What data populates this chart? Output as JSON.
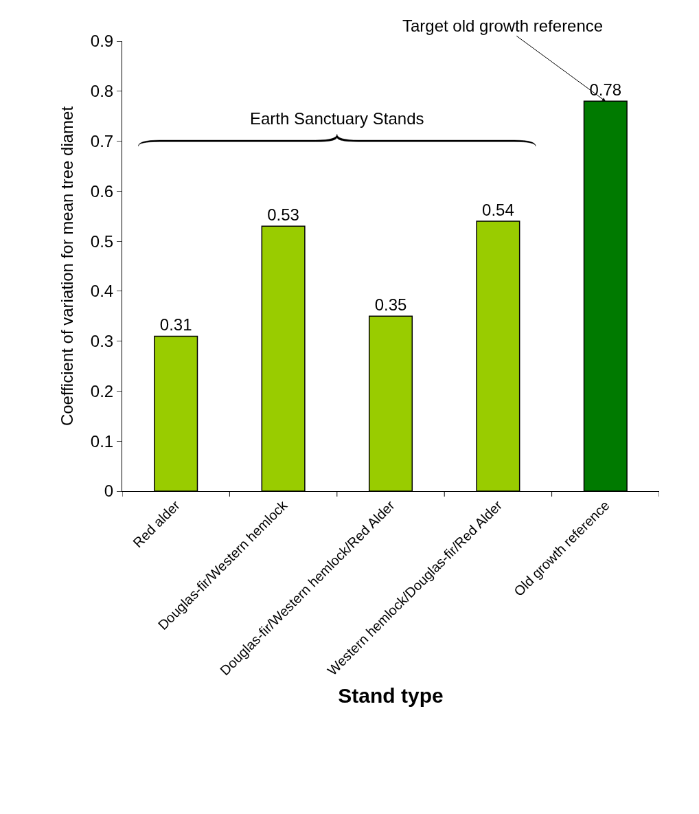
{
  "chart_data": {
    "type": "bar",
    "xlabel": "Stand type",
    "ylabel": "Coefficient of variation for mean tree diamet",
    "categories": [
      "Red alder",
      "Douglas-fir/Western hemlock",
      "Douglas-fir/Western hemlock/Red Alder",
      "Western hemlock/Douglas-fir/Red Alder",
      "Old growth reference"
    ],
    "values": [
      0.31,
      0.53,
      0.35,
      0.54,
      0.78
    ],
    "colors": [
      "#99cc00",
      "#99cc00",
      "#99cc00",
      "#99cc00",
      "#007a00"
    ],
    "data_labels": true,
    "ylim": [
      0,
      0.9
    ],
    "yticks": [
      0,
      0.1,
      0.2,
      0.3,
      0.4,
      0.5,
      0.6,
      0.7,
      0.8,
      0.9
    ],
    "annotations": [
      "Earth Sanctuary Stands",
      {
        "text": "Target old growth reference",
        "x": "Old growth reference",
        "y": 0.78
      }
    ]
  }
}
